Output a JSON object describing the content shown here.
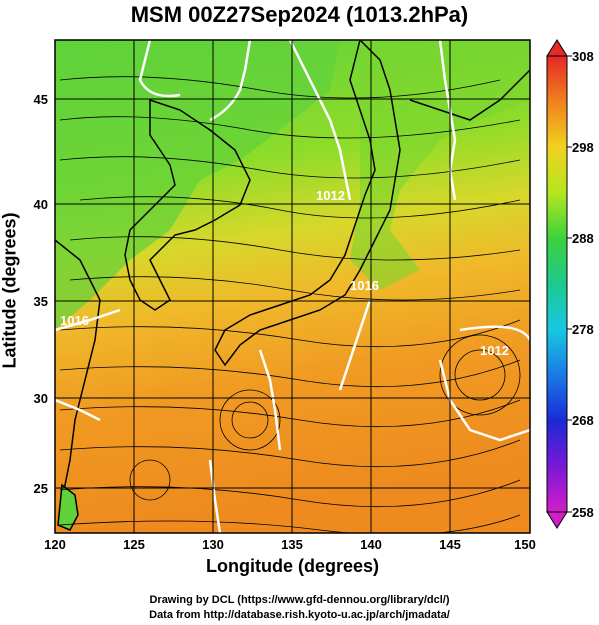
{
  "title": "MSM 00Z27Sep2024 (1013.2hPa)",
  "map": {
    "xlabel": "Longitude (degrees)",
    "ylabel": "Latitude  (degrees)",
    "xticks": [
      "120",
      "125",
      "130",
      "135",
      "140",
      "145",
      "150"
    ],
    "yticks": [
      "25",
      "30",
      "35",
      "40",
      "45"
    ],
    "contour_labels": [
      "1012",
      "1016",
      "1016",
      "1012"
    ]
  },
  "colorbar": {
    "labels": [
      "308",
      "298",
      "288",
      "278",
      "268",
      "258"
    ]
  },
  "footer": {
    "line1": "Drawing by DCL (https://www.gfd-dennou.org/library/dcl/)",
    "line2": "Data from http://database.rish.kyoto-u.ac.jp/arch/jmadata/"
  }
}
